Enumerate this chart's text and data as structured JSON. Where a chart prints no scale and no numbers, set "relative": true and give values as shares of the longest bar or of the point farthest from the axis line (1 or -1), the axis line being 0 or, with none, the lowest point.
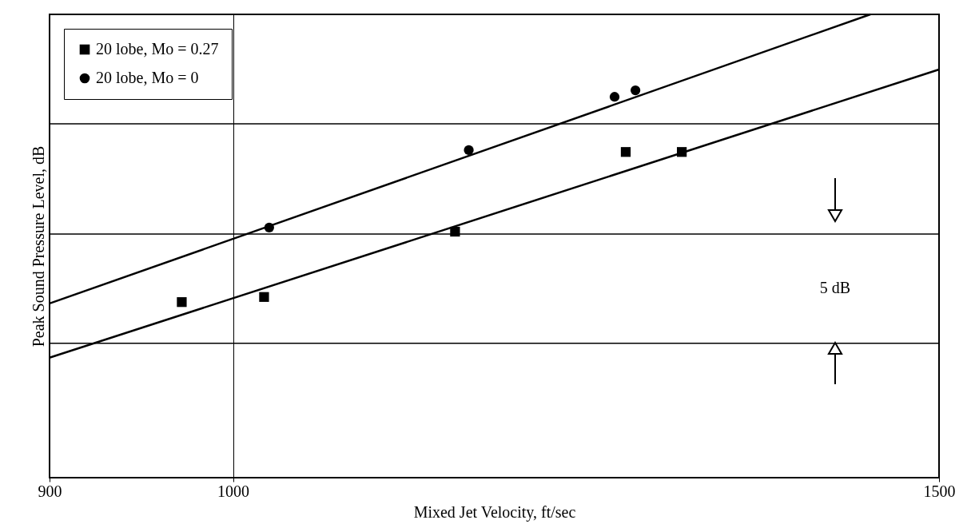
{
  "chart_data": {
    "type": "scatter",
    "relative": true,
    "xlabel": "Mixed Jet Velocity, ft/sec",
    "ylabel": "Peak Sound Pressure Level, dB",
    "log": "x",
    "xlim": [
      900,
      1500
    ],
    "xticks": [
      900,
      1000,
      1500
    ],
    "grid": "x",
    "legend": "top left",
    "series": [
      {
        "name": "20 lobe, Mo = 0.27",
        "color": "#000000",
        "marker": "square",
        "x": [
          971,
          1018,
          1136,
          1253,
          1294
        ],
        "values": [
          0.379,
          0.39,
          0.531,
          0.703,
          0.703
        ]
      },
      {
        "name": "20 lobe, Mo = 0",
        "color": "#000000",
        "marker": "circle",
        "x": [
          1021,
          1145,
          1245,
          1260
        ],
        "values": [
          0.54,
          0.707,
          0.822,
          0.836
        ]
      },
      {
        "type": "line",
        "color": "#000000",
        "marker": "none",
        "x": [
          900,
          1442
        ],
        "values": [
          0.376,
          1.0
        ]
      },
      {
        "type": "line",
        "color": "#000000",
        "marker": "none",
        "x": [
          900,
          1500
        ],
        "values": [
          0.259,
          0.881
        ]
      }
    ],
    "ref_lines": [
      {
        "axis": "y",
        "value": 0.764,
        "color": "#000000"
      },
      {
        "axis": "y",
        "value": 0.526,
        "color": "#000000"
      },
      {
        "axis": "y",
        "value": 0.29,
        "color": "#000000"
      }
    ],
    "annotations": [
      "5 dB"
    ]
  }
}
